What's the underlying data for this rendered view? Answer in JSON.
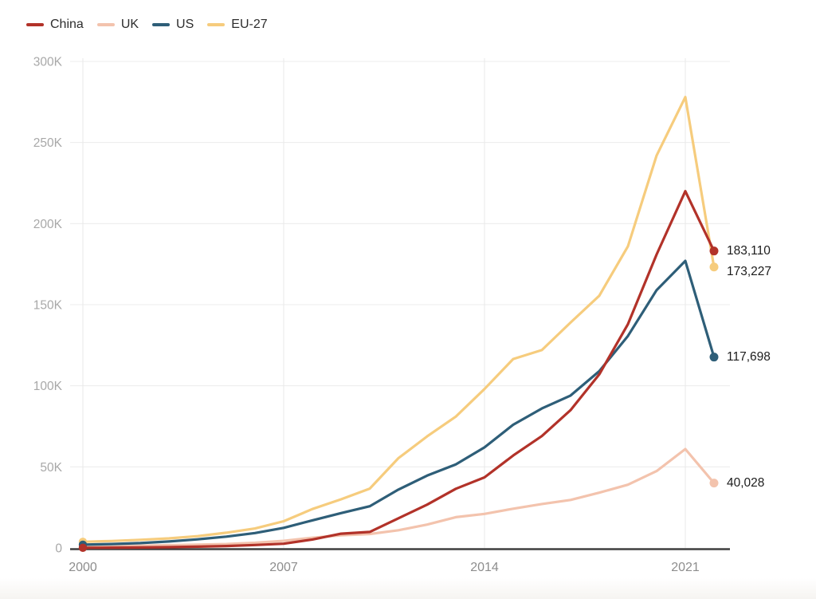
{
  "chart_data": {
    "type": "line",
    "title": "",
    "x": [
      2000,
      2001,
      2002,
      2003,
      2004,
      2005,
      2006,
      2007,
      2008,
      2009,
      2010,
      2011,
      2012,
      2013,
      2014,
      2015,
      2016,
      2017,
      2018,
      2019,
      2020,
      2021,
      2022
    ],
    "x_axis": {
      "tick_years": [
        2000,
        2007,
        2014,
        2021
      ],
      "tick_labels": [
        "2000",
        "2007",
        "2014",
        "2021"
      ]
    },
    "y_axis": {
      "tick_values": [
        0,
        50000,
        100000,
        150000,
        200000,
        250000,
        300000
      ],
      "tick_labels": [
        "0",
        "50K",
        "100K",
        "150K",
        "200K",
        "250K",
        "300K"
      ],
      "ylim": [
        0,
        300000
      ]
    },
    "grid": "on",
    "legend_position": "top-left",
    "series": [
      {
        "name": "China",
        "color": "#b23229",
        "end_label": "183,110",
        "values": [
          100,
          200,
          300,
          500,
          800,
          1200,
          1800,
          2600,
          5200,
          8800,
          9900,
          18300,
          26700,
          36500,
          43500,
          57000,
          69000,
          85000,
          107000,
          138000,
          181000,
          220000,
          183110
        ]
      },
      {
        "name": "UK",
        "color": "#f3c3ad",
        "end_label": "40,028",
        "values": [
          1000,
          1200,
          1400,
          1700,
          2000,
          2400,
          3200,
          4400,
          6300,
          7800,
          8600,
          10900,
          14400,
          19000,
          21000,
          24200,
          27100,
          29600,
          34100,
          39000,
          47400,
          61000,
          40028
        ]
      },
      {
        "name": "US",
        "color": "#2e5e78",
        "end_label": "117,698",
        "values": [
          2000,
          2400,
          3000,
          4000,
          5300,
          7000,
          9200,
          12400,
          17000,
          21500,
          25700,
          36000,
          44600,
          51500,
          62000,
          76000,
          86000,
          94000,
          109000,
          130700,
          159000,
          177000,
          117698
        ]
      },
      {
        "name": "EU-27",
        "color": "#f6cc7d",
        "end_label": "173,227",
        "values": [
          3800,
          4300,
          5000,
          5900,
          7300,
          9400,
          12000,
          16500,
          24000,
          30000,
          36600,
          55400,
          68800,
          81000,
          98000,
          116500,
          122000,
          139000,
          155500,
          186000,
          242000,
          278000,
          173227
        ]
      }
    ]
  }
}
